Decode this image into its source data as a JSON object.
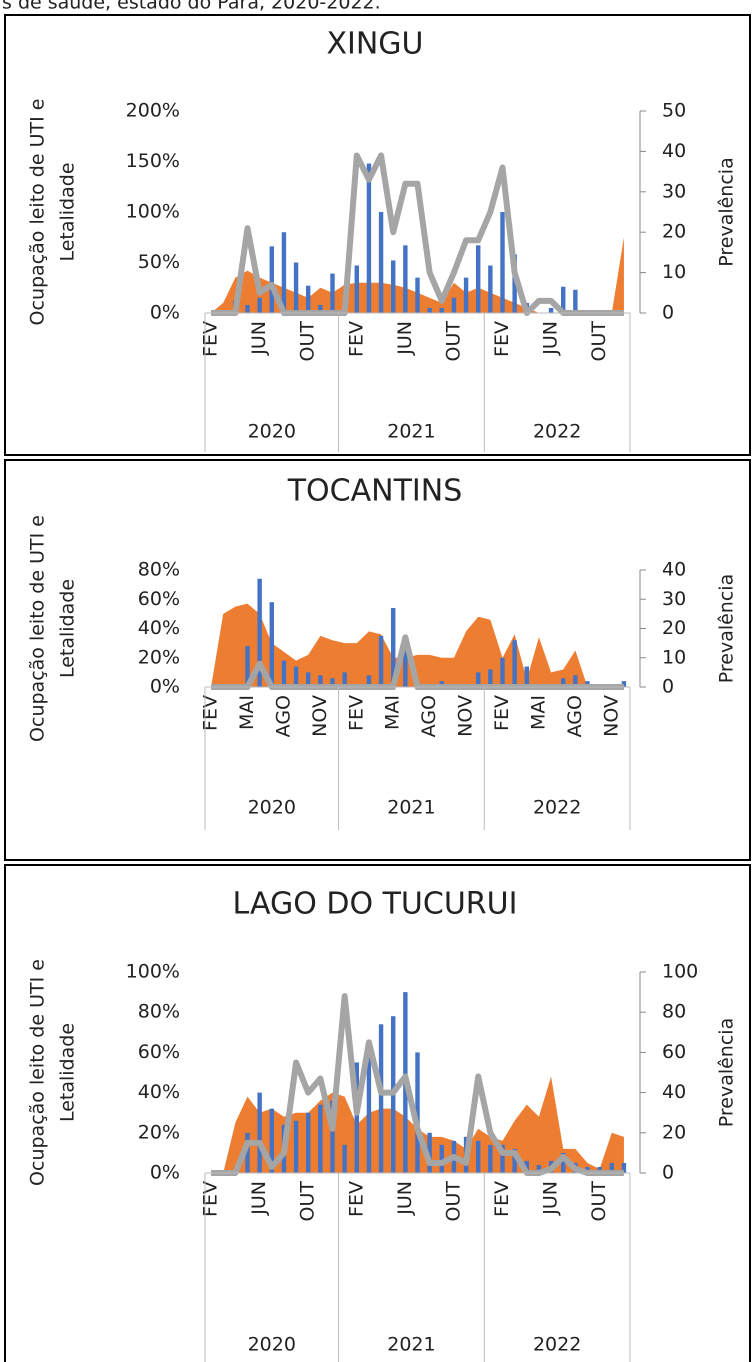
{
  "caption": "s de saúde, estado do Pará, 2020-2022.",
  "chart_data": [
    {
      "type": "combo",
      "title": "XINGU",
      "y_label": [
        "Ocupação leito de UTI e",
        "Letalidade"
      ],
      "y2_label": "Prevalência",
      "categories": [
        "FEV",
        null,
        null,
        null,
        "JUN",
        null,
        null,
        null,
        "OUT",
        null,
        null,
        null,
        "FEV",
        null,
        null,
        null,
        "JUN",
        null,
        null,
        null,
        "OUT",
        null,
        null,
        null,
        "FEV",
        null,
        null,
        null,
        "JUN",
        null,
        null,
        null,
        "OUT",
        null,
        null
      ],
      "x_groups": [
        "2020",
        "2021",
        "2022"
      ],
      "ylim": [
        0,
        200
      ],
      "yticks": [
        {
          "value": 0,
          "label": "0%"
        },
        {
          "value": 50,
          "label": "50%"
        },
        {
          "value": 100,
          "label": "100%"
        },
        {
          "value": 150,
          "label": "150%"
        },
        {
          "value": 200,
          "label": "200%"
        }
      ],
      "y2lim": [
        0,
        50
      ],
      "y2ticks": [
        0,
        10,
        20,
        30,
        40,
        50
      ],
      "series": [
        {
          "type": "area",
          "color": "#ed7d31",
          "values": [
            0,
            10,
            35,
            42,
            35,
            30,
            25,
            20,
            15,
            25,
            20,
            28,
            30,
            30,
            30,
            28,
            25,
            20,
            15,
            10,
            30,
            20,
            25,
            20,
            15,
            10,
            5,
            0,
            0,
            0,
            0,
            0,
            0,
            0,
            75
          ]
        },
        {
          "type": "bar",
          "color": "#4472c4",
          "values": [
            0,
            0,
            12,
            8,
            15,
            66,
            80,
            50,
            27,
            8,
            39,
            0,
            47,
            148,
            100,
            52,
            67,
            35,
            5,
            5,
            15,
            35,
            67,
            47,
            100,
            58,
            10,
            0,
            5,
            26,
            23,
            0,
            0,
            0,
            0
          ]
        },
        {
          "type": "line",
          "color": "#a5a5a5",
          "axis": "y2",
          "values": [
            0,
            0,
            0,
            21,
            5,
            7,
            0,
            0,
            0,
            0,
            0,
            0,
            39,
            33,
            39,
            20,
            32,
            32,
            10,
            3,
            10,
            18,
            18,
            25,
            36,
            10,
            0,
            3,
            3,
            0,
            0,
            0,
            0,
            0,
            0
          ]
        }
      ]
    },
    {
      "type": "combo",
      "title": "TOCANTINS",
      "y_label": [
        "Ocupação leito de UTI e",
        "Letalidade"
      ],
      "y2_label": "Prevalência",
      "categories": [
        "FEV",
        null,
        null,
        "MAI",
        null,
        null,
        "AGO",
        null,
        null,
        "NOV",
        null,
        null,
        "FEV",
        null,
        null,
        "MAI",
        null,
        null,
        "AGO",
        null,
        null,
        "NOV",
        null,
        null,
        "FEV",
        null,
        null,
        "MAI",
        null,
        null,
        "AGO",
        null,
        null,
        "NOV",
        null
      ],
      "x_groups": [
        "2020",
        "2021",
        "2022"
      ],
      "ylim": [
        0,
        80
      ],
      "yticks": [
        {
          "value": 0,
          "label": "0%"
        },
        {
          "value": 20,
          "label": "20%"
        },
        {
          "value": 40,
          "label": "40%"
        },
        {
          "value": 60,
          "label": "60%"
        },
        {
          "value": 80,
          "label": "80%"
        }
      ],
      "y2lim": [
        0,
        40
      ],
      "y2ticks": [
        0,
        10,
        20,
        30,
        40
      ],
      "series": [
        {
          "type": "area",
          "color": "#ed7d31",
          "values": [
            0,
            50,
            55,
            57,
            50,
            30,
            24,
            18,
            22,
            35,
            32,
            30,
            30,
            38,
            36,
            20,
            20,
            22,
            22,
            20,
            20,
            38,
            48,
            46,
            20,
            36,
            5,
            34,
            10,
            12,
            25,
            0,
            0,
            0,
            0
          ]
        },
        {
          "type": "bar",
          "color": "#4472c4",
          "values": [
            0,
            0,
            2,
            28,
            74,
            58,
            18,
            14,
            10,
            8,
            6,
            10,
            0,
            8,
            35,
            54,
            28,
            0,
            0,
            4,
            1,
            1,
            10,
            12,
            20,
            32,
            14,
            2,
            2,
            6,
            8,
            4,
            0,
            2,
            4
          ]
        },
        {
          "type": "line",
          "color": "#a5a5a5",
          "axis": "y2",
          "values": [
            0,
            0,
            0,
            0,
            8,
            0,
            0,
            0,
            0,
            0,
            0,
            0,
            0,
            0,
            0,
            0,
            17,
            0,
            0,
            0,
            0,
            0,
            0,
            0,
            0,
            0,
            0,
            0,
            0,
            0,
            0,
            0,
            0,
            0,
            0
          ]
        }
      ]
    },
    {
      "type": "combo",
      "title": "LAGO DO TUCURUI",
      "y_label": [
        "Ocupação leito de UTI e",
        "Letalidade"
      ],
      "y2_label": "Prevalência",
      "categories": [
        "FEV",
        null,
        null,
        null,
        "JUN",
        null,
        null,
        null,
        "OUT",
        null,
        null,
        null,
        "FEV",
        null,
        null,
        null,
        "JUN",
        null,
        null,
        null,
        "OUT",
        null,
        null,
        null,
        "FEV",
        null,
        null,
        null,
        "JUN",
        null,
        null,
        null,
        "OUT",
        null,
        null
      ],
      "x_groups": [
        "2020",
        "2021",
        "2022"
      ],
      "ylim": [
        0,
        100
      ],
      "yticks": [
        {
          "value": 0,
          "label": "0%"
        },
        {
          "value": 20,
          "label": "20%"
        },
        {
          "value": 40,
          "label": "40%"
        },
        {
          "value": 60,
          "label": "60%"
        },
        {
          "value": 80,
          "label": "80%"
        },
        {
          "value": 100,
          "label": "100%"
        }
      ],
      "y2lim": [
        0,
        100
      ],
      "y2ticks": [
        0,
        20,
        40,
        60,
        80,
        100
      ],
      "series": [
        {
          "type": "area",
          "color": "#ed7d31",
          "values": [
            0,
            0,
            25,
            38,
            30,
            32,
            28,
            30,
            30,
            36,
            40,
            38,
            24,
            30,
            32,
            32,
            28,
            22,
            18,
            18,
            16,
            12,
            22,
            18,
            16,
            26,
            34,
            28,
            48,
            12,
            12,
            5,
            2,
            20,
            18
          ]
        },
        {
          "type": "bar",
          "color": "#4472c4",
          "values": [
            0,
            0,
            0,
            20,
            40,
            32,
            24,
            26,
            30,
            34,
            36,
            14,
            55,
            62,
            74,
            78,
            90,
            60,
            20,
            14,
            16,
            18,
            16,
            14,
            14,
            12,
            6,
            4,
            6,
            10,
            5,
            3,
            3,
            5,
            5
          ]
        },
        {
          "type": "line",
          "color": "#a5a5a5",
          "axis": "y2",
          "values": [
            0,
            0,
            0,
            15,
            15,
            3,
            10,
            55,
            40,
            47,
            22,
            88,
            30,
            65,
            40,
            40,
            48,
            22,
            5,
            5,
            8,
            5,
            48,
            20,
            10,
            10,
            0,
            0,
            2,
            8,
            2,
            0,
            0,
            0,
            0
          ]
        }
      ]
    }
  ]
}
